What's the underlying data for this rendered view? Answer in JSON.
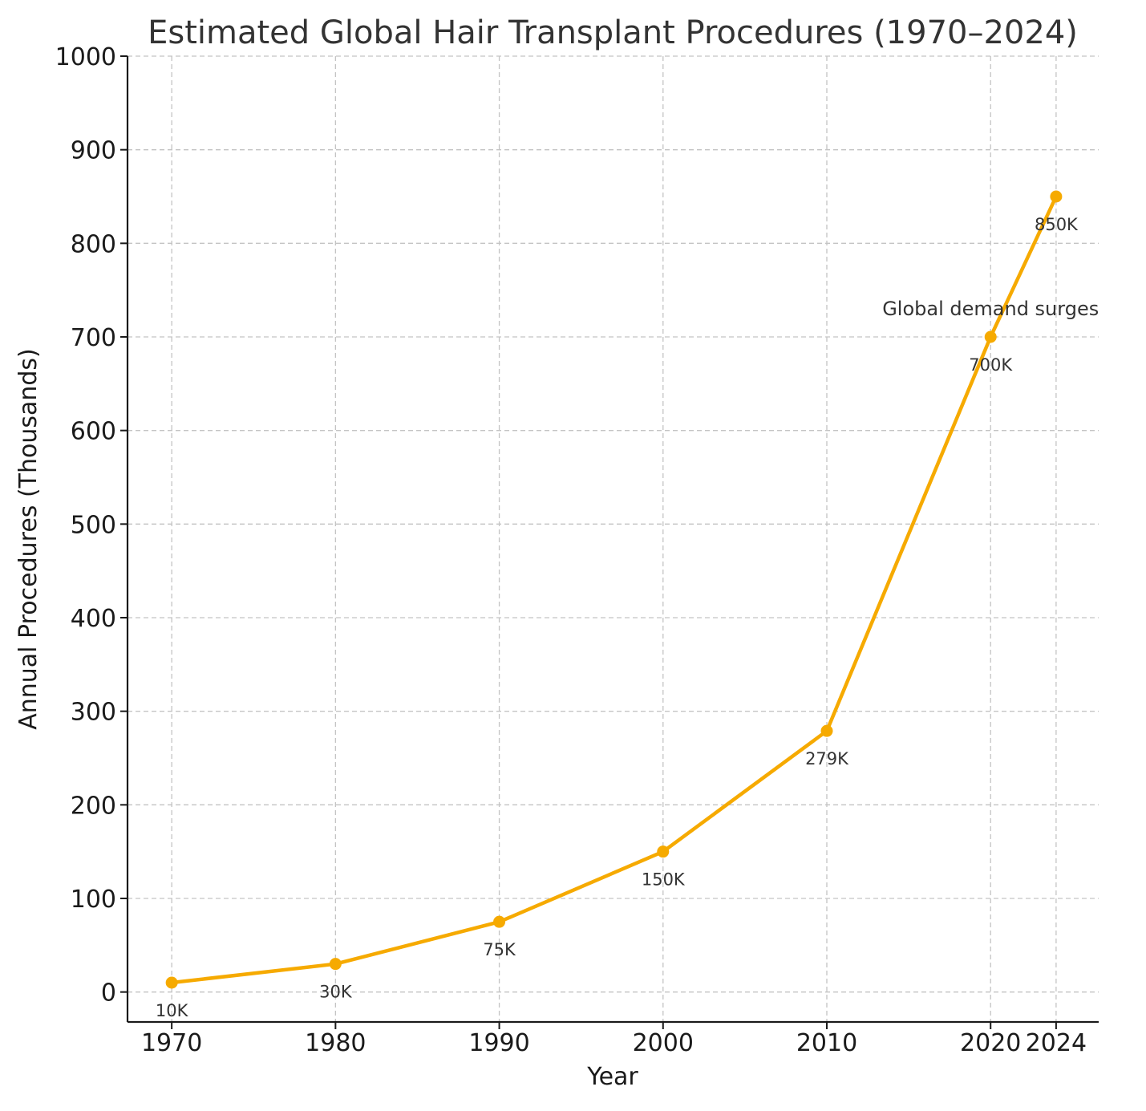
{
  "chart_data": {
    "type": "line",
    "title": "Estimated Global Hair Transplant Procedures (1970–2024)",
    "xlabel": "Year",
    "ylabel": "Annual Procedures (Thousands)",
    "x": [
      1970,
      1980,
      1990,
      2000,
      2010,
      2020,
      2024
    ],
    "series": [
      {
        "values": [
          10,
          30,
          75,
          150,
          279,
          700,
          850
        ],
        "color": "#F6AA00"
      }
    ],
    "data_labels": [
      "10K",
      "30K",
      "75K",
      "150K",
      "279K",
      "700K",
      "850K"
    ],
    "x_ticks": [
      1970,
      1980,
      1990,
      2000,
      2010,
      2020,
      2024
    ],
    "y_ticks": [
      0,
      100,
      200,
      300,
      400,
      500,
      600,
      700,
      800,
      900,
      1000
    ],
    "xlim": [
      1967.3,
      2026.6
    ],
    "ylim": [
      -32,
      1000
    ],
    "grid": true,
    "annotations": [
      {
        "text": "Global demand surges",
        "x": 2020,
        "y": 723
      }
    ]
  }
}
